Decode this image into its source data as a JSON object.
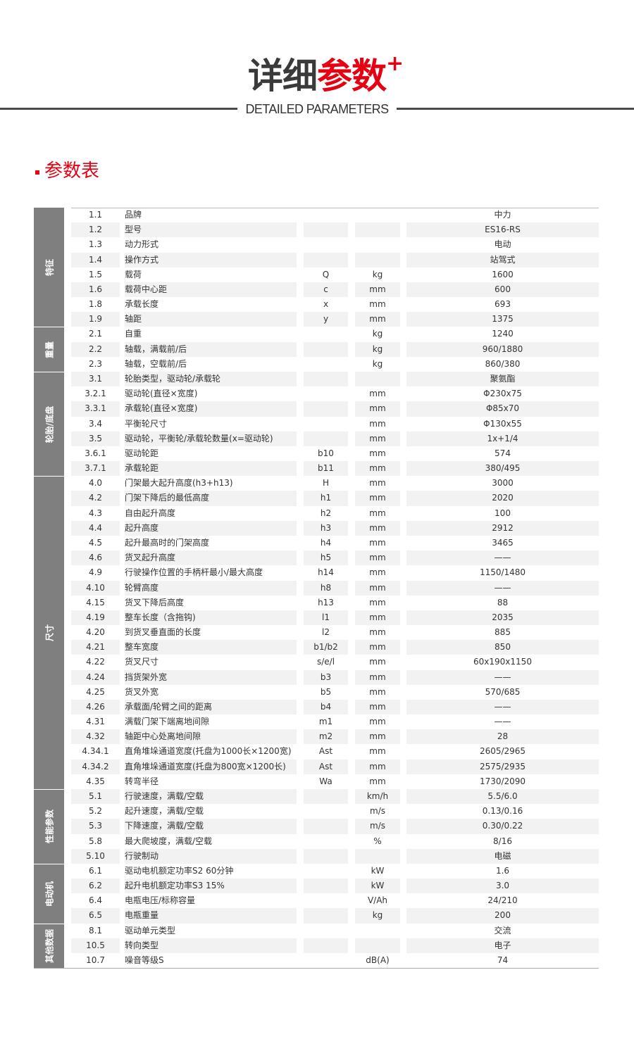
{
  "header": {
    "title_dark": "详细",
    "title_red": "参数",
    "plus": "+",
    "subtitle": "DETAILED PARAMETERS"
  },
  "section": {
    "title": "参数表"
  },
  "colors": {
    "accent": "#e60012",
    "group_bg": "#7f7f7f",
    "stripe": "#f2f2f2"
  },
  "groups": [
    {
      "label": "特征",
      "rows": [
        [
          "1.1",
          "品牌",
          "",
          "",
          "中力"
        ],
        [
          "1.2",
          "型号",
          "",
          "",
          "ES16-RS"
        ],
        [
          "1.3",
          "动力形式",
          "",
          "",
          "电动"
        ],
        [
          "1.4",
          "操作方式",
          "",
          "",
          "站驾式"
        ],
        [
          "1.5",
          "载荷",
          "Q",
          "kg",
          "1600"
        ],
        [
          "1.6",
          "载荷中心距",
          "c",
          "mm",
          "600"
        ],
        [
          "1.8",
          "承载长度",
          "x",
          "mm",
          "693"
        ],
        [
          "1.9",
          "轴距",
          "y",
          "mm",
          "1375"
        ]
      ]
    },
    {
      "label": "重量",
      "rows": [
        [
          "2.1",
          "自重",
          "",
          "kg",
          "1240"
        ],
        [
          "2.2",
          "轴载，满载前/后",
          "",
          "kg",
          "960/1880"
        ],
        [
          "2.3",
          "轴载，空载前/后",
          "",
          "kg",
          "860/380"
        ]
      ]
    },
    {
      "label": "轮胎/底盘",
      "rows": [
        [
          "3.1",
          "轮胎类型，驱动轮/承载轮",
          "",
          "",
          "聚氨酯"
        ],
        [
          "3.2.1",
          "驱动轮(直径×宽度)",
          "",
          "mm",
          "Φ230x75"
        ],
        [
          "3.3.1",
          "承载轮(直径×宽度)",
          "",
          "mm",
          "Φ85x70"
        ],
        [
          "3.4",
          "平衡轮尺寸",
          "",
          "mm",
          "Φ130x55"
        ],
        [
          "3.5",
          "驱动轮，平衡轮/承载轮数量(x=驱动轮)",
          "",
          "mm",
          "1x+1/4"
        ],
        [
          "3.6.1",
          "驱动轮距",
          "b10",
          "mm",
          "574"
        ],
        [
          "3.7.1",
          "承载轮距",
          "b11",
          "mm",
          "380/495"
        ]
      ]
    },
    {
      "label": "尺寸",
      "rows": [
        [
          "4.0",
          "门架最大起升高度(h3+h13)",
          "H",
          "mm",
          "3000"
        ],
        [
          "4.2",
          "门架下降后的最低高度",
          "h1",
          "mm",
          "2020"
        ],
        [
          "4.3",
          "自由起升高度",
          "h2",
          "mm",
          "100"
        ],
        [
          "4.4",
          "起升高度",
          "h3",
          "mm",
          "2912"
        ],
        [
          "4.5",
          "起升最高时的门架高度",
          "h4",
          "mm",
          "3465"
        ],
        [
          "4.6",
          "货叉起升高度",
          "h5",
          "mm",
          "——"
        ],
        [
          "4.9",
          "行驶操作位置的手柄杆最小/最大高度",
          "h14",
          "mm",
          "1150/1480"
        ],
        [
          "4.10",
          "轮臂高度",
          "h8",
          "mm",
          "——"
        ],
        [
          "4.15",
          "货叉下降后高度",
          "h13",
          "mm",
          "88"
        ],
        [
          "4.19",
          "整车长度（含拖钩)",
          "l1",
          "mm",
          "2035"
        ],
        [
          "4.20",
          "到货叉垂直面的长度",
          "l2",
          "mm",
          "885"
        ],
        [
          "4.21",
          "整车宽度",
          "b1/b2",
          "mm",
          "850"
        ],
        [
          "4.22",
          "货叉尺寸",
          "s/e/l",
          "mm",
          "60x190x1150"
        ],
        [
          "4.24",
          "挡货架外宽",
          "b3",
          "mm",
          "——"
        ],
        [
          "4.25",
          "货叉外宽",
          "b5",
          "mm",
          "570/685"
        ],
        [
          "4.26",
          "承载面/轮臂之间的距离",
          "b4",
          "mm",
          "——"
        ],
        [
          "4.31",
          "满载门架下端离地间隙",
          "m1",
          "mm",
          "——"
        ],
        [
          "4.32",
          "轴距中心处离地间隙",
          "m2",
          "mm",
          "28"
        ],
        [
          "4.34.1",
          "直角堆垛通道宽度(托盘为1000长×1200宽)",
          "Ast",
          "mm",
          "2605/2965"
        ],
        [
          "4.34.2",
          "直角堆垛通道宽度(托盘为800宽×1200长)",
          "Ast",
          "mm",
          "2575/2935"
        ],
        [
          "4.35",
          "转弯半径",
          "Wa",
          "mm",
          "1730/2090"
        ]
      ]
    },
    {
      "label": "性能参数",
      "rows": [
        [
          "5.1",
          "行驶速度，满载/空载",
          "",
          "km/h",
          "5.5/6.0"
        ],
        [
          "5.2",
          "起升速度，满载/空载",
          "",
          "m/s",
          "0.13/0.16"
        ],
        [
          "5.3",
          "下降速度，满载/空载",
          "",
          "m/s",
          "0.30/0.22"
        ],
        [
          "5.8",
          "最大爬坡度，满载/空载",
          "",
          "%",
          "8/16"
        ],
        [
          "5.10",
          "行驶制动",
          "",
          "",
          "电磁"
        ]
      ]
    },
    {
      "label": "电动机",
      "rows": [
        [
          "6.1",
          "驱动电机额定功率S2 60分钟",
          "",
          "kW",
          "1.6"
        ],
        [
          "6.2",
          "起升电机额定功率S3 15%",
          "",
          "kW",
          "3.0"
        ],
        [
          "6.4",
          "电瓶电压/标称容量",
          "",
          "V/Ah",
          "24/210"
        ],
        [
          "6.5",
          "电瓶重量",
          "",
          "kg",
          "200"
        ]
      ]
    },
    {
      "label": "其他数据",
      "rows": [
        [
          "8.1",
          "驱动单元类型",
          "",
          "",
          "交流"
        ],
        [
          "10.5",
          "转向类型",
          "",
          "",
          "电子"
        ],
        [
          "10.7",
          "噪音等级S",
          "",
          "dB(A)",
          "74"
        ]
      ]
    }
  ]
}
